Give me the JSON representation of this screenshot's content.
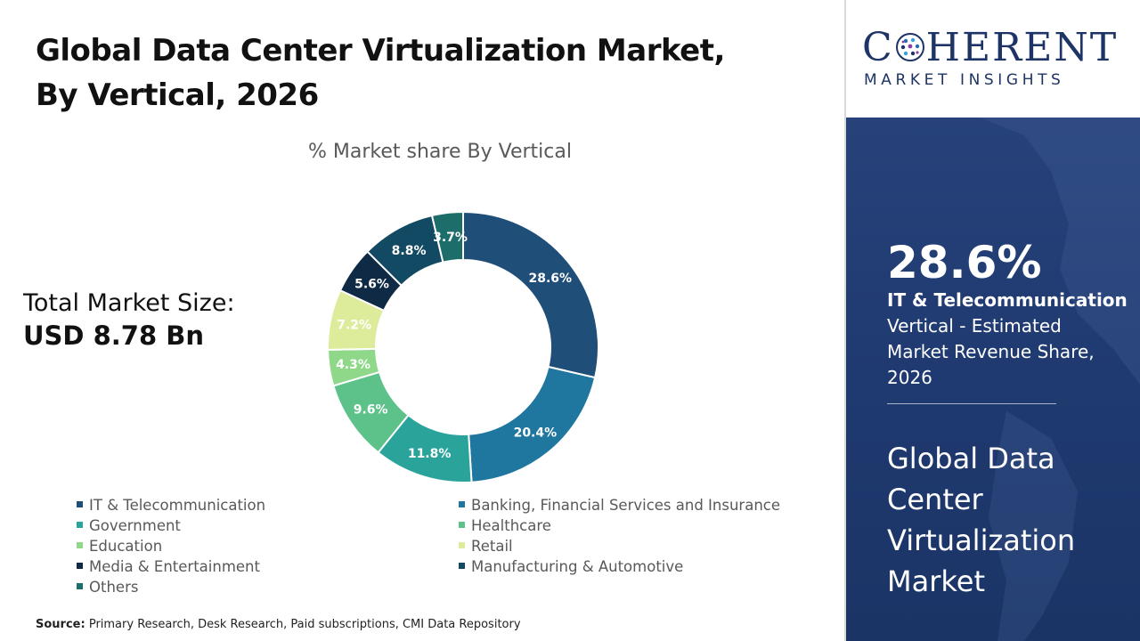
{
  "header": {
    "title": "Global Data Center Virtualization Market, By Vertical, 2026"
  },
  "total": {
    "label": "Total Market Size:",
    "value": "USD 8.78 Bn"
  },
  "chart_data": {
    "type": "pie",
    "style": "donut",
    "title": "% Market share By Vertical",
    "categories": [
      "IT & Telecommunication",
      "Banking, Financial Services and Insurance",
      "Government",
      "Healthcare",
      "Education",
      "Retail",
      "Media & Entertainment",
      "Manufacturing & Automotive",
      "Others"
    ],
    "values": [
      28.6,
      20.4,
      11.8,
      9.6,
      4.3,
      7.2,
      5.6,
      8.8,
      3.7
    ],
    "labels": [
      "28.6%",
      "20.4%",
      "11.8%",
      "9.6%",
      "4.3%",
      "7.2%",
      "5.6%",
      "8.8%",
      "3.7%"
    ],
    "colors": [
      "#1f4e79",
      "#1f77a0",
      "#2aa39a",
      "#5cc28a",
      "#8fd88a",
      "#dcec9a",
      "#0e2a45",
      "#134a63",
      "#1d6e6a"
    ],
    "legend_position": "bottom"
  },
  "source": {
    "label": "Source:",
    "text": "Primary Research, Desk Research, Paid subscriptions, CMI Data Repository"
  },
  "logo": {
    "word_left": "C",
    "word_right": "HERENT",
    "subtitle": "MARKET INSIGHTS",
    "color": "#1e3466"
  },
  "highlight": {
    "percent": "28.6%",
    "segment": "IT & Telecommunication",
    "description": "Vertical - Estimated Market Revenue Share, 2026",
    "market_name": "Global Data Center Virtualization Market",
    "panel_color": "#23407a"
  }
}
